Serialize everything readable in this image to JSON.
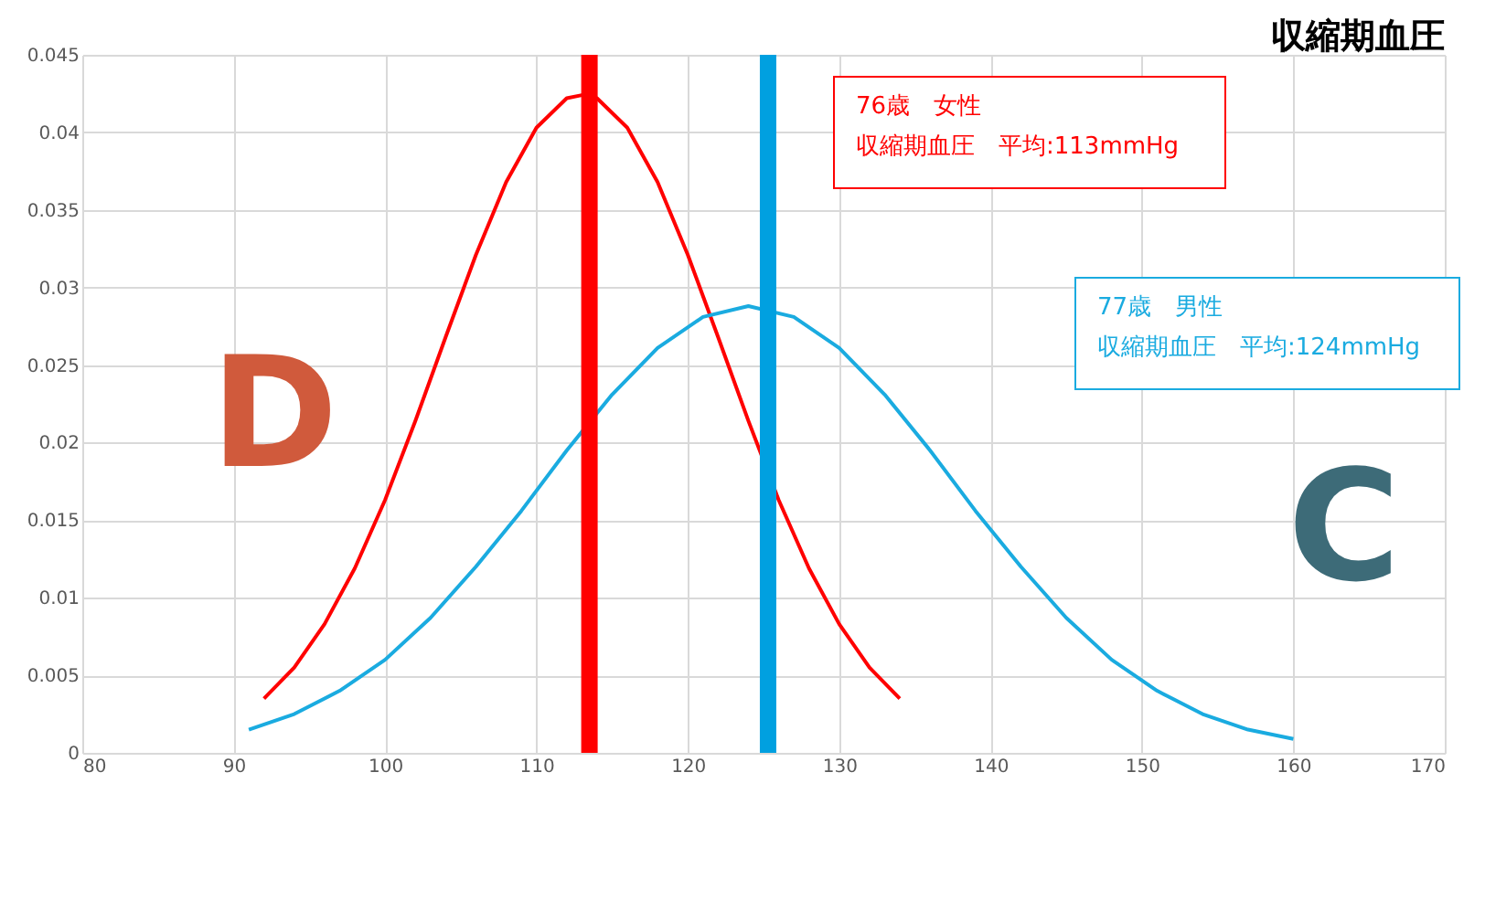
{
  "chart_data": {
    "type": "line",
    "title": "収縮期血圧",
    "series": [
      {
        "color": "#ff0000",
        "x": [
          92,
          94,
          96,
          98,
          100,
          102,
          104,
          106,
          108,
          110,
          112,
          113,
          114,
          116,
          118,
          120,
          122,
          124,
          126,
          128,
          130,
          132,
          134
        ],
        "values": [
          0.0035,
          0.0055,
          0.0083,
          0.0119,
          0.0163,
          0.0214,
          0.0268,
          0.0321,
          0.0368,
          0.0403,
          0.0422,
          0.0424,
          0.0422,
          0.0403,
          0.0368,
          0.0321,
          0.0268,
          0.0214,
          0.0163,
          0.0119,
          0.0083,
          0.0055,
          0.0035
        ]
      },
      {
        "color": "#1aabe0",
        "x": [
          91,
          94,
          97,
          100,
          103,
          106,
          109,
          112,
          115,
          118,
          121,
          124,
          127,
          130,
          133,
          136,
          139,
          142,
          145,
          148,
          151,
          154,
          157,
          160
        ],
        "values": [
          0.0015,
          0.0025,
          0.004,
          0.006,
          0.0087,
          0.012,
          0.0156,
          0.0195,
          0.0231,
          0.0261,
          0.0281,
          0.0288,
          0.0281,
          0.0261,
          0.0231,
          0.0195,
          0.0156,
          0.012,
          0.0087,
          0.006,
          0.004,
          0.0025,
          0.0015,
          0.0009
        ]
      }
    ],
    "xlim": [
      80,
      170
    ],
    "xticks": [
      80,
      90,
      100,
      110,
      120,
      130,
      140,
      150,
      160,
      170
    ],
    "ylim": [
      0,
      0.045
    ],
    "yticks": [
      0,
      0.005,
      0.01,
      0.015,
      0.02,
      0.025,
      0.03,
      0.035,
      0.04,
      0.045
    ],
    "grid": true,
    "marker": "none",
    "line_style": "solid",
    "ref_lines": [
      {
        "axis": "x",
        "value": 113.5,
        "color": "#ff0000"
      },
      {
        "axis": "x",
        "value": 125.3,
        "color": "#00a0e0"
      }
    ],
    "annotations": [
      "76歳　女性",
      "収縮期血圧　平均:113mmHg",
      "77歳　男性",
      "収縮期血圧　平均:124mmHg",
      "D",
      "C"
    ]
  }
}
